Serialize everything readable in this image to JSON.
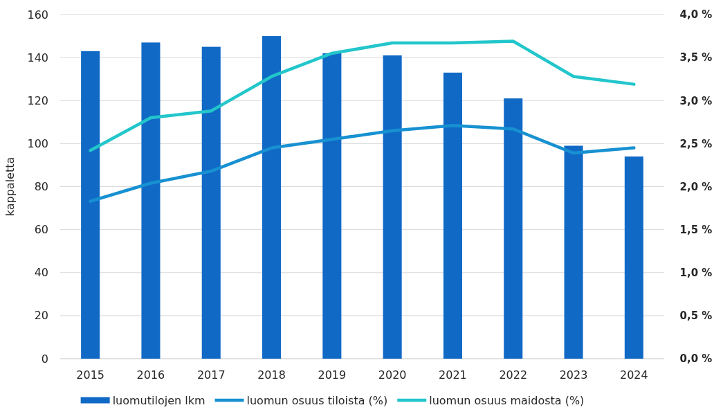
{
  "chart_data": {
    "type": "bar",
    "ylabel": "kappaletta",
    "categories": [
      "2015",
      "2016",
      "2017",
      "2018",
      "2019",
      "2020",
      "2021",
      "2022",
      "2023",
      "2024"
    ],
    "series": [
      {
        "name": "luomutilojen lkm",
        "color": "#1169c6",
        "values": [
          143,
          147,
          145,
          150,
          142,
          141,
          133,
          121,
          99,
          94
        ]
      },
      {
        "name": "luomun osuus tiloista (%)",
        "type": "line",
        "axis": "y2",
        "color": "#1791d1",
        "values": [
          1.83,
          2.04,
          2.18,
          2.45,
          2.55,
          2.65,
          2.71,
          2.67,
          2.39,
          2.45
        ]
      },
      {
        "name": "luomun osuus maidosta (%)",
        "type": "line",
        "axis": "y2",
        "color": "#22c6cb",
        "values": [
          2.42,
          2.8,
          2.88,
          3.28,
          3.55,
          3.67,
          3.67,
          3.69,
          3.28,
          3.19
        ]
      }
    ],
    "ylim": [
      0,
      160
    ],
    "yticks": [
      0,
      20,
      40,
      60,
      80,
      100,
      120,
      140,
      160
    ],
    "y2lim": [
      0,
      4
    ],
    "y2ticks": [
      {
        "value": 0,
        "label": "0,0 %"
      },
      {
        "value": 0.5,
        "label": "0,5 %"
      },
      {
        "value": 1,
        "label": "1,0 %"
      },
      {
        "value": 1.5,
        "label": "1,5 %"
      },
      {
        "value": 2,
        "label": "2,0 %"
      },
      {
        "value": 2.5,
        "label": "2,5 %"
      },
      {
        "value": 3,
        "label": "3,0 %"
      },
      {
        "value": 3.5,
        "label": "3,5 %"
      },
      {
        "value": 4,
        "label": "4,0 %"
      }
    ],
    "grid": "y",
    "legend": "bottom"
  }
}
